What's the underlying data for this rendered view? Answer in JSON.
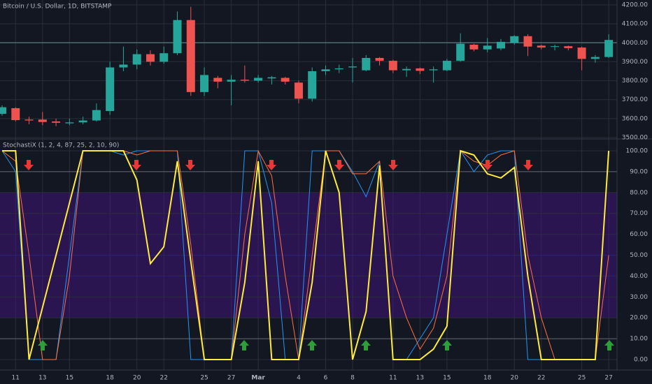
{
  "chart_data": [
    {
      "type": "candlestick",
      "title": "Bitcoin / U.S. Dollar, 1D, BITSTAMP",
      "categories": [
        null,
        "11",
        null,
        "13",
        null,
        "15",
        null,
        null,
        "18",
        null,
        "20",
        null,
        "22",
        null,
        null,
        "25",
        null,
        "27",
        null,
        "Mar",
        null,
        null,
        "4",
        null,
        "6",
        null,
        "8",
        null,
        null,
        "11",
        null,
        "13",
        null,
        "15",
        null,
        null,
        "18",
        null,
        "20",
        null,
        "22",
        null,
        null,
        "25",
        null,
        "27"
      ],
      "open": [
        3625,
        3655,
        3595,
        3595,
        3585,
        3575,
        3580,
        3590,
        3640,
        3870,
        3885,
        3940,
        3900,
        3945,
        4120,
        3740,
        3815,
        3795,
        3805,
        3800,
        3812,
        3815,
        3790,
        3705,
        3850,
        3860,
        3870,
        3855,
        3920,
        3905,
        3855,
        3865,
        3855,
        3855,
        3905,
        3990,
        3965,
        3970,
        4000,
        4035,
        3985,
        3978,
        3982,
        3975,
        3915,
        3925
      ],
      "high": [
        3670,
        3660,
        3610,
        3635,
        3600,
        3600,
        3610,
        3680,
        3900,
        3980,
        3965,
        3960,
        3980,
        4165,
        4190,
        3870,
        3825,
        3830,
        3880,
        3830,
        3825,
        3820,
        3800,
        3870,
        3880,
        3885,
        3920,
        3935,
        3925,
        3910,
        3875,
        3870,
        3875,
        3915,
        4050,
        3995,
        4025,
        4020,
        4040,
        4045,
        3990,
        3990,
        3985,
        3980,
        3935,
        4045
      ],
      "low": [
        3615,
        3585,
        3570,
        3565,
        3560,
        3565,
        3570,
        3585,
        3620,
        3850,
        3860,
        3880,
        3890,
        3935,
        3720,
        3720,
        3760,
        3670,
        3790,
        3790,
        3780,
        3780,
        3680,
        3690,
        3830,
        3840,
        3790,
        3850,
        3880,
        3840,
        3820,
        3835,
        3790,
        3850,
        3900,
        3955,
        3950,
        3960,
        3990,
        3930,
        3965,
        3960,
        3960,
        3855,
        3895,
        3920
      ],
      "close": [
        3660,
        3592,
        3590,
        3582,
        3578,
        3580,
        3590,
        3645,
        3870,
        3885,
        3940,
        3900,
        3945,
        4120,
        3740,
        3830,
        3795,
        3805,
        3800,
        3815,
        3818,
        3795,
        3705,
        3850,
        3860,
        3865,
        3875,
        3920,
        3905,
        3855,
        3862,
        3852,
        3860,
        3905,
        3995,
        3965,
        3985,
        4005,
        4035,
        3980,
        3975,
        3982,
        3972,
        3915,
        3925,
        4015
      ],
      "up_color": "#26a69a",
      "down_color": "#ef5350",
      "reference_line": 4000,
      "ylim": [
        3500,
        4200
      ],
      "yticks": [
        {
          "value": 3500,
          "label": "3500.00"
        },
        {
          "value": 3600,
          "label": "3600.00"
        },
        {
          "value": 3700,
          "label": "3700.00"
        },
        {
          "value": 3800,
          "label": "3800.00"
        },
        {
          "value": 3900,
          "label": "3900.00"
        },
        {
          "value": 4000,
          "label": "4000.00"
        },
        {
          "value": 4100,
          "label": "4100.00"
        },
        {
          "value": 4200,
          "label": "4200.00"
        }
      ],
      "grid": true
    },
    {
      "type": "line",
      "title": "StochastiX (1, 2, 4, 87, 25, 2, 10, 90)",
      "series": [
        {
          "color": "#2196f3",
          "width": 1,
          "values": [
            100,
            90,
            0,
            0,
            0,
            50,
            100,
            100,
            100,
            98,
            100,
            100,
            100,
            100,
            0,
            0,
            0,
            0,
            100,
            100,
            75,
            0,
            0,
            100,
            100,
            100,
            90,
            78,
            95,
            0,
            0,
            10,
            20,
            60,
            100,
            90,
            98,
            100,
            100,
            0,
            0,
            0,
            0,
            0,
            0,
            100
          ]
        },
        {
          "color": "#ff7043",
          "width": 1,
          "values": [
            100,
            95,
            50,
            0,
            0,
            40,
            100,
            100,
            100,
            100,
            98,
            100,
            100,
            100,
            55,
            0,
            0,
            0,
            60,
            100,
            88,
            40,
            0,
            50,
            100,
            100,
            89,
            89,
            95,
            40,
            20,
            5,
            15,
            40,
            100,
            95,
            93,
            98,
            100,
            50,
            20,
            0,
            0,
            0,
            0,
            50
          ]
        },
        {
          "color": "#ffeb3b",
          "width": 2,
          "values": [
            100,
            100,
            0,
            25,
            50,
            75,
            100,
            100,
            100,
            100,
            86,
            46,
            54,
            95,
            47,
            0,
            0,
            0,
            37,
            95,
            0,
            0,
            0,
            37,
            100,
            80,
            0,
            23,
            93,
            0,
            0,
            0,
            5,
            16,
            100,
            98,
            89,
            87,
            92,
            40,
            0,
            0,
            0,
            0,
            0,
            100
          ]
        }
      ],
      "band": [
        20,
        80
      ],
      "band_color": "#4a148c",
      "levels": [
        10,
        90
      ],
      "ylim": [
        0,
        100
      ],
      "yticks": [
        {
          "value": 0,
          "label": "0.00"
        },
        {
          "value": 10,
          "label": "10.00"
        },
        {
          "value": 20,
          "label": "20.00"
        },
        {
          "value": 30,
          "label": "30.00"
        },
        {
          "value": 40,
          "label": "40.00"
        },
        {
          "value": 50,
          "label": "50.00"
        },
        {
          "value": 60,
          "label": "60.00"
        },
        {
          "value": 70,
          "label": "70.00"
        },
        {
          "value": 80,
          "label": "80.00"
        },
        {
          "value": 90,
          "label": "90.00"
        },
        {
          "value": 100,
          "label": "100.00"
        }
      ],
      "grid": true
    }
  ]
}
